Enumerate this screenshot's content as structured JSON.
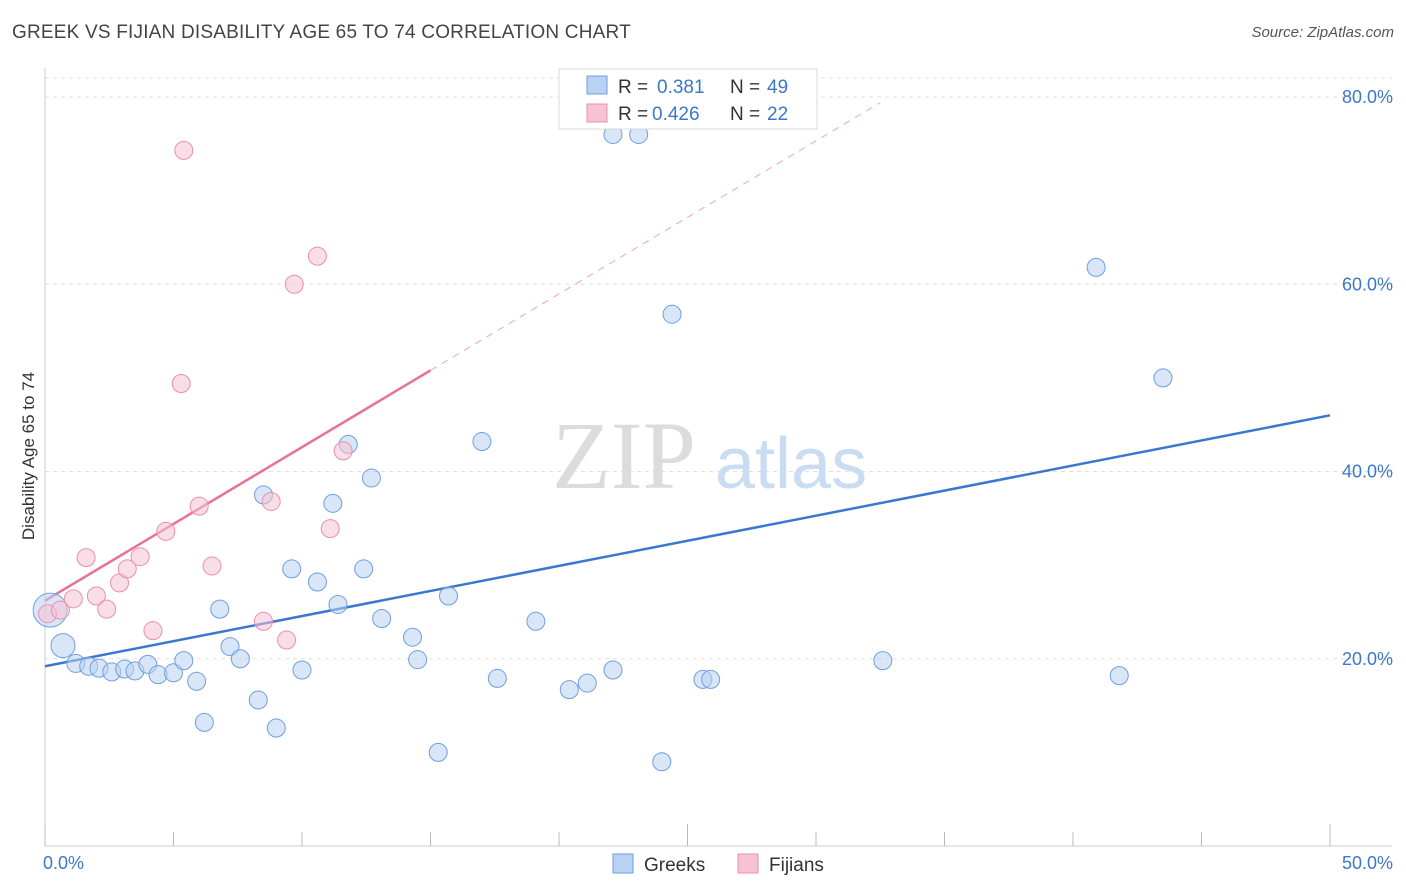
{
  "title": "GREEK VS FIJIAN DISABILITY AGE 65 TO 74 CORRELATION CHART",
  "source": "Source: ZipAtlas.com",
  "watermark": {
    "zip": "ZIP",
    "atlas": "atlas"
  },
  "legend": {
    "rows": [
      {
        "r_label": "R =",
        "r_value": "0.381",
        "n_label": "N =",
        "n_value": "49"
      },
      {
        "r_label": "R =",
        "r_value": "0.426",
        "n_label": "N =",
        "n_value": "22"
      }
    ]
  },
  "chart_data": {
    "type": "scatter",
    "title": "GREEK VS FIJIAN DISABILITY AGE 65 TO 74 CORRELATION CHART",
    "xlabel": "",
    "ylabel": "Disability Age 65 to 74",
    "xlim": [
      0,
      50
    ],
    "ylim": [
      0,
      82
    ],
    "x_tick_labels": {
      "min": "0.0%",
      "max": "50.0%"
    },
    "y_ticks": [
      {
        "value": 20,
        "label": "20.0%"
      },
      {
        "value": 40,
        "label": "40.0%"
      },
      {
        "value": 60,
        "label": "60.0%"
      },
      {
        "value": 80,
        "label": "80.0%"
      }
    ],
    "grid": true,
    "colors": {
      "greeks": "#3a78d0",
      "fijians": "#e8719a",
      "greeks_fill": "#b9d2f3",
      "fijians_fill": "#f6c3d3"
    },
    "series": [
      {
        "name": "Greeks",
        "r": 0.381,
        "n": 49,
        "trend": {
          "x0": 0,
          "y0": 19.2,
          "x1": 50,
          "y1": 46.0
        },
        "points": [
          [
            0.2,
            25.2,
            16
          ],
          [
            0.7,
            21.4,
            11
          ],
          [
            1.2,
            19.5,
            8
          ],
          [
            1.7,
            19.2,
            8
          ],
          [
            2.1,
            19.0,
            8
          ],
          [
            2.6,
            18.6,
            8
          ],
          [
            3.1,
            18.9,
            8
          ],
          [
            3.5,
            18.7,
            8
          ],
          [
            4.0,
            19.4,
            8
          ],
          [
            4.4,
            18.3,
            8
          ],
          [
            5.0,
            18.5,
            8
          ],
          [
            5.4,
            19.8,
            8
          ],
          [
            5.9,
            17.6,
            8
          ],
          [
            6.2,
            13.2,
            8
          ],
          [
            6.8,
            25.3,
            8
          ],
          [
            7.2,
            21.3,
            8
          ],
          [
            7.6,
            20.0,
            8
          ],
          [
            8.3,
            15.6,
            8
          ],
          [
            8.5,
            37.5,
            8
          ],
          [
            9.0,
            12.6,
            8
          ],
          [
            9.6,
            29.6,
            8
          ],
          [
            10.0,
            18.8,
            8
          ],
          [
            10.6,
            28.2,
            8
          ],
          [
            11.2,
            36.6,
            8
          ],
          [
            11.4,
            25.8,
            8
          ],
          [
            11.8,
            42.9,
            8
          ],
          [
            12.4,
            29.6,
            8
          ],
          [
            12.7,
            39.3,
            8
          ],
          [
            13.1,
            24.3,
            8
          ],
          [
            14.3,
            22.3,
            8
          ],
          [
            14.5,
            19.9,
            8
          ],
          [
            15.3,
            10.0,
            8
          ],
          [
            15.7,
            26.7,
            8
          ],
          [
            17.0,
            43.2,
            8
          ],
          [
            17.6,
            17.9,
            8
          ],
          [
            19.1,
            24.0,
            8
          ],
          [
            20.4,
            16.7,
            8
          ],
          [
            21.1,
            17.4,
            8
          ],
          [
            22.1,
            18.8,
            8
          ],
          [
            22.1,
            76.0,
            8
          ],
          [
            23.1,
            76.0,
            8
          ],
          [
            24.0,
            9.0,
            8
          ],
          [
            24.4,
            56.8,
            8
          ],
          [
            25.6,
            17.8,
            8
          ],
          [
            25.9,
            17.8,
            8
          ],
          [
            32.6,
            19.8,
            8
          ],
          [
            40.9,
            61.8,
            8
          ],
          [
            41.8,
            18.2,
            8
          ],
          [
            43.5,
            50.0,
            8
          ]
        ]
      },
      {
        "name": "Fijians",
        "r": 0.426,
        "n": 22,
        "trend": {
          "x0": 0,
          "y0": 26.2,
          "x1": 15.0,
          "y1": 50.8
        },
        "trend_dashed_end": {
          "x": 32.5,
          "y": 79.4
        },
        "points": [
          [
            0.1,
            24.8,
            8
          ],
          [
            0.6,
            25.2,
            8
          ],
          [
            1.1,
            26.4,
            8
          ],
          [
            1.6,
            30.8,
            8
          ],
          [
            2.0,
            26.7,
            8
          ],
          [
            2.4,
            25.3,
            8
          ],
          [
            2.9,
            28.1,
            8
          ],
          [
            3.2,
            29.6,
            8
          ],
          [
            3.7,
            30.9,
            8
          ],
          [
            4.2,
            23.0,
            8
          ],
          [
            4.7,
            33.6,
            8
          ],
          [
            5.3,
            49.4,
            8
          ],
          [
            5.4,
            74.3,
            8
          ],
          [
            6.0,
            36.3,
            8
          ],
          [
            6.5,
            29.9,
            8
          ],
          [
            8.5,
            24.0,
            8
          ],
          [
            8.8,
            36.8,
            8
          ],
          [
            9.4,
            22.0,
            8
          ],
          [
            9.7,
            60.0,
            8
          ],
          [
            10.6,
            63.0,
            8
          ],
          [
            11.1,
            33.9,
            8
          ],
          [
            11.6,
            42.2,
            8
          ]
        ]
      }
    ]
  }
}
